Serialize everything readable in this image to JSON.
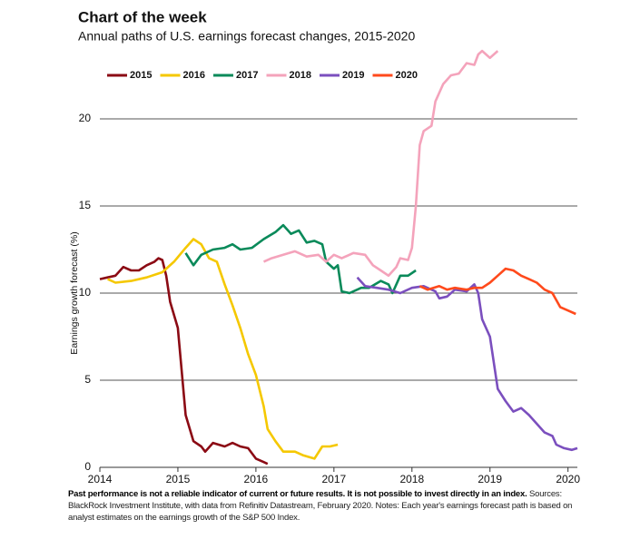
{
  "chart_data": {
    "type": "line",
    "title": "Chart of the week",
    "subtitle": "Annual paths of U.S. earnings forecast changes, 2015-2020",
    "y_label": "Earnings growth forecast (%)",
    "footnote_bold": "Past performance is not a reliable indicator of current or future results. It is not possible to invest directly in an index.",
    "footnote": "Sources: BlackRock Investment Institute, with data from Refinitiv Datastream, February 2020. Notes: Each year's earnings forecast path is based on analyst estimates on the earnings growth of the S&P 500 Index.",
    "xlim": [
      2014,
      2020.12
    ],
    "xticks": [
      2014,
      2015,
      2016,
      2017,
      2018,
      2019,
      2020
    ],
    "ylim": [
      0,
      24.5
    ],
    "yticks": [
      0,
      5,
      10,
      15,
      20
    ],
    "grid": true,
    "legend": "top-left",
    "series": [
      {
        "name": "2015",
        "color": "#8b0a14",
        "x": [
          2014.0,
          2014.1,
          2014.2,
          2014.3,
          2014.4,
          2014.5,
          2014.6,
          2014.7,
          2014.75,
          2014.8,
          2014.85,
          2014.9,
          2015.0,
          2015.05,
          2015.1,
          2015.2,
          2015.3,
          2015.35,
          2015.45,
          2015.6,
          2015.7,
          2015.8,
          2015.9,
          2016.0,
          2016.1,
          2016.15
        ],
        "values": [
          10.8,
          10.9,
          11.0,
          11.5,
          11.3,
          11.3,
          11.6,
          11.8,
          12.0,
          11.9,
          11.0,
          9.5,
          8.0,
          5.5,
          3.0,
          1.5,
          1.2,
          0.9,
          1.4,
          1.2,
          1.4,
          1.2,
          1.1,
          0.5,
          0.3,
          0.2
        ]
      },
      {
        "name": "2016",
        "color": "#f5c800",
        "x": [
          2014.1,
          2014.2,
          2014.4,
          2014.6,
          2014.8,
          2014.95,
          2015.1,
          2015.2,
          2015.3,
          2015.4,
          2015.5,
          2015.6,
          2015.7,
          2015.8,
          2015.9,
          2016.0,
          2016.1,
          2016.15,
          2016.25,
          2016.35,
          2016.5,
          2016.6,
          2016.75,
          2016.85,
          2016.95,
          2017.05
        ],
        "values": [
          10.8,
          10.6,
          10.7,
          10.9,
          11.2,
          11.8,
          12.6,
          13.1,
          12.8,
          12.0,
          11.8,
          10.5,
          9.3,
          8.0,
          6.5,
          5.3,
          3.5,
          2.2,
          1.5,
          0.9,
          0.9,
          0.7,
          0.5,
          1.2,
          1.2,
          1.3
        ]
      },
      {
        "name": "2017",
        "color": "#0a8a5a",
        "x": [
          2015.1,
          2015.2,
          2015.3,
          2015.45,
          2015.6,
          2015.7,
          2015.8,
          2015.95,
          2016.1,
          2016.25,
          2016.35,
          2016.45,
          2016.55,
          2016.65,
          2016.75,
          2016.85,
          2016.9,
          2017.0,
          2017.05,
          2017.1,
          2017.2,
          2017.35,
          2017.45,
          2017.6,
          2017.7,
          2017.75,
          2017.85,
          2017.95,
          2018.05
        ],
        "values": [
          12.3,
          11.6,
          12.2,
          12.5,
          12.6,
          12.8,
          12.5,
          12.6,
          13.1,
          13.5,
          13.9,
          13.4,
          13.6,
          12.9,
          13.0,
          12.8,
          11.8,
          11.4,
          11.6,
          10.1,
          10.0,
          10.3,
          10.3,
          10.7,
          10.5,
          10.0,
          11.0,
          11.0,
          11.3
        ]
      },
      {
        "name": "2018",
        "color": "#f4a3bb",
        "x": [
          2016.1,
          2016.2,
          2016.35,
          2016.5,
          2016.65,
          2016.8,
          2016.9,
          2017.0,
          2017.1,
          2017.25,
          2017.4,
          2017.5,
          2017.6,
          2017.7,
          2017.8,
          2017.85,
          2017.95,
          2018.0,
          2018.05,
          2018.1,
          2018.15,
          2018.25,
          2018.3,
          2018.4,
          2018.5,
          2018.6,
          2018.7,
          2018.8,
          2018.85,
          2018.9,
          2019.0,
          2019.1
        ],
        "values": [
          11.8,
          12.0,
          12.2,
          12.4,
          12.1,
          12.2,
          11.8,
          12.2,
          12.0,
          12.3,
          12.2,
          11.6,
          11.3,
          11.0,
          11.5,
          12.0,
          11.9,
          12.6,
          15.0,
          18.5,
          19.3,
          19.6,
          21.0,
          22.0,
          22.5,
          22.6,
          23.2,
          23.1,
          23.7,
          23.9,
          23.5,
          23.9
        ]
      },
      {
        "name": "2019",
        "color": "#7b4fbe",
        "x": [
          2017.3,
          2017.4,
          2017.55,
          2017.7,
          2017.85,
          2018.0,
          2018.15,
          2018.3,
          2018.35,
          2018.45,
          2018.55,
          2018.7,
          2018.8,
          2018.85,
          2018.9,
          2019.0,
          2019.05,
          2019.1,
          2019.2,
          2019.3,
          2019.4,
          2019.5,
          2019.6,
          2019.7,
          2019.8,
          2019.85,
          2019.95,
          2020.05,
          2020.12
        ],
        "values": [
          10.9,
          10.4,
          10.3,
          10.2,
          10.0,
          10.3,
          10.4,
          10.1,
          9.7,
          9.8,
          10.2,
          10.1,
          10.5,
          10.0,
          8.5,
          7.5,
          6.0,
          4.5,
          3.8,
          3.2,
          3.4,
          3.0,
          2.5,
          2.0,
          1.8,
          1.3,
          1.1,
          1.0,
          1.1
        ]
      },
      {
        "name": "2020",
        "color": "#ff4a1c",
        "x": [
          2018.1,
          2018.2,
          2018.35,
          2018.45,
          2018.55,
          2018.7,
          2018.8,
          2018.9,
          2019.0,
          2019.1,
          2019.2,
          2019.3,
          2019.4,
          2019.5,
          2019.6,
          2019.7,
          2019.8,
          2019.9,
          2020.0,
          2020.1
        ],
        "values": [
          10.4,
          10.2,
          10.4,
          10.2,
          10.3,
          10.2,
          10.3,
          10.3,
          10.6,
          11.0,
          11.4,
          11.3,
          11.0,
          10.8,
          10.6,
          10.2,
          10.0,
          9.2,
          9.0,
          8.8
        ]
      }
    ]
  }
}
